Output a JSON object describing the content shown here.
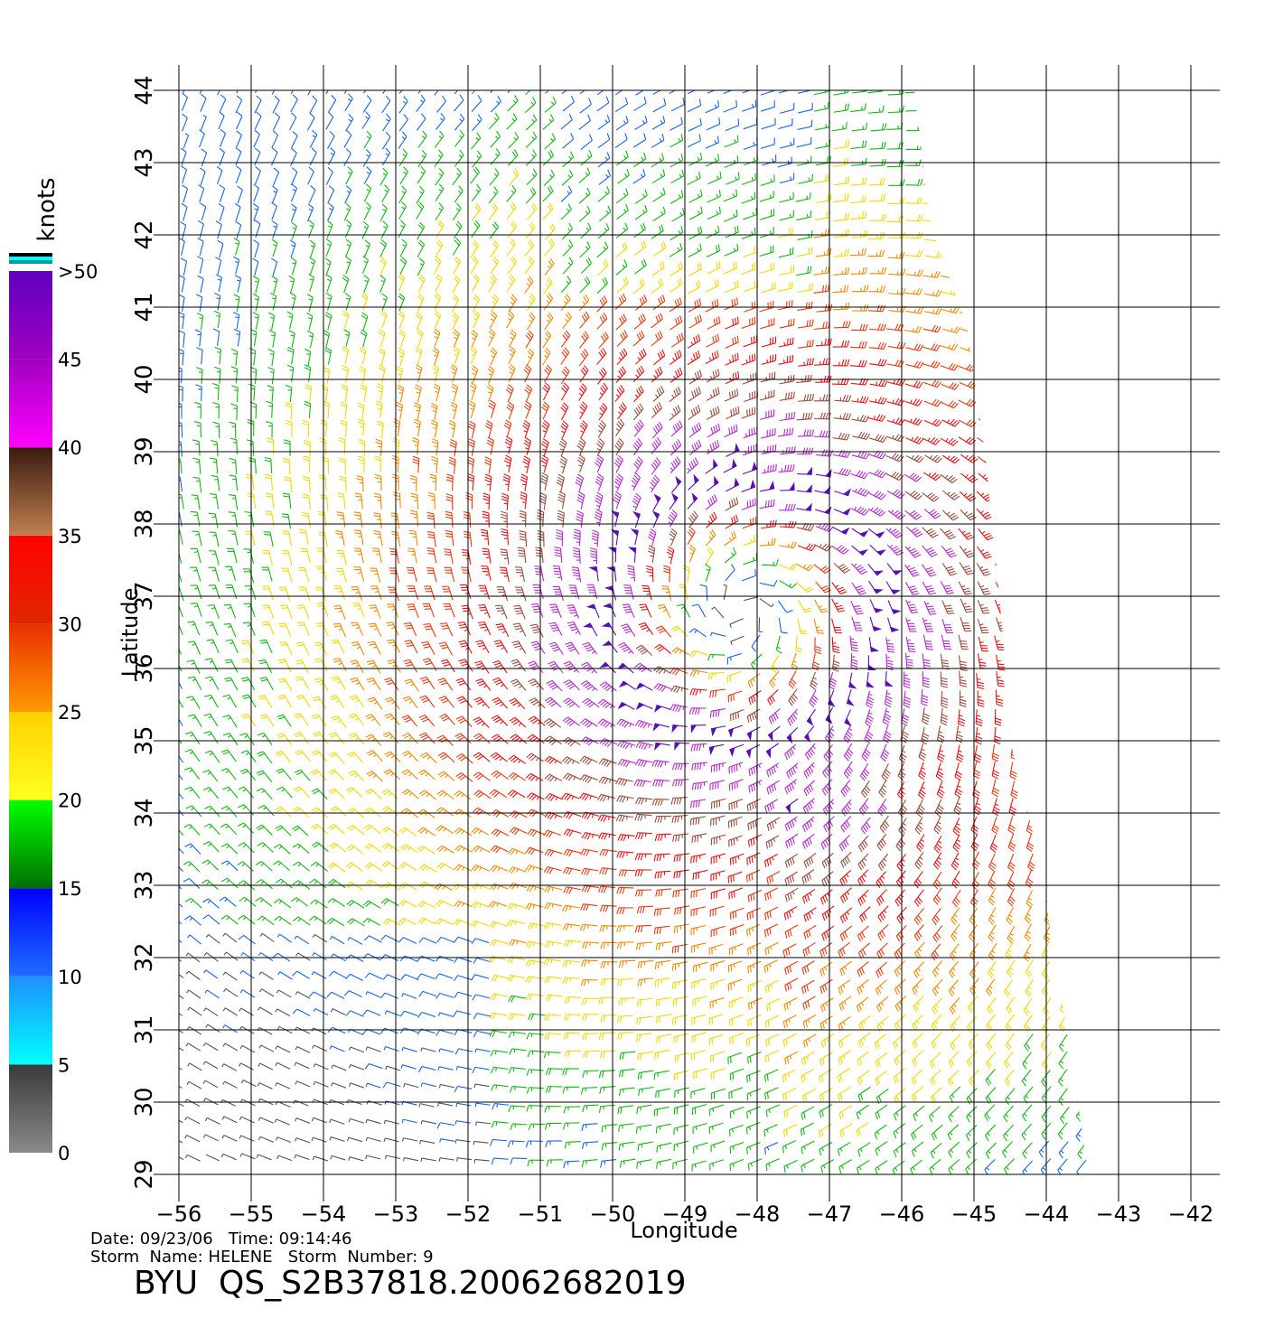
{
  "map": {
    "x_label": "Longitude",
    "y_label": "Latitude",
    "lon_ticks": [
      "−56",
      "−55",
      "−54",
      "−53",
      "−52",
      "−51",
      "−50",
      "−49",
      "−48",
      "−47",
      "−46",
      "−45",
      "−44",
      "−43",
      "−42"
    ],
    "lat_ticks": [
      "29",
      "30",
      "31",
      "32",
      "33",
      "34",
      "35",
      "36",
      "37",
      "38",
      "39",
      "40",
      "41",
      "42",
      "43",
      "44"
    ],
    "lon_range": [
      -56,
      -42
    ],
    "lat_range": [
      29,
      44
    ],
    "storm_center": {
      "lon": -48.2,
      "lat": 36.8
    }
  },
  "legend": {
    "unit": "knots",
    "labels": [
      ">50",
      "45",
      "40",
      "35",
      "30",
      "25",
      "20",
      "15",
      "10",
      "5",
      "0"
    ],
    "bands": [
      {
        "from": 0,
        "to": 5,
        "top": "#3a3a3a",
        "bottom": "#8a8a8a"
      },
      {
        "from": 5,
        "to": 10,
        "top": "#1e90ff",
        "bottom": "#00ffff"
      },
      {
        "from": 10,
        "to": 15,
        "top": "#0000ff",
        "bottom": "#1e6eff"
      },
      {
        "from": 15,
        "to": 20,
        "top": "#00ff00",
        "bottom": "#007000"
      },
      {
        "from": 20,
        "to": 25,
        "top": "#ffd000",
        "bottom": "#ffff20"
      },
      {
        "from": 25,
        "to": 30,
        "top": "#e83000",
        "bottom": "#ff9a00"
      },
      {
        "from": 30,
        "to": 35,
        "top": "#ff0000",
        "bottom": "#e02800"
      },
      {
        "from": 35,
        "to": 40,
        "top": "#3a1a10",
        "bottom": "#c08050"
      },
      {
        "from": 40,
        "to": 45,
        "top": "#a000c0",
        "bottom": "#ff00ff"
      },
      {
        "from": 45,
        "to": 50,
        "top": "#6000c0",
        "bottom": "#a000c0"
      }
    ],
    "top_stripes": [
      "#000000",
      "#00ffff",
      "#00a0a0",
      "#ffffff"
    ]
  },
  "wind_colors": {
    "calm": "#555555",
    "light": "#1565e8",
    "moderate": "#11b811",
    "fresh": "#f3d800",
    "strong": "#f08a00",
    "gale": "#e83a10",
    "storm": "#e81212",
    "severe": "#9a4a3a",
    "violent": "#b22cc8",
    "hurricane": "#5810b0"
  },
  "info": {
    "date_line": "Date: 09/23/06   Time: 09:14:46",
    "storm_line": "Storm  Name: HELENE   Storm  Number: 9",
    "product": "BYU  QS_S2B37818.20062682019"
  }
}
